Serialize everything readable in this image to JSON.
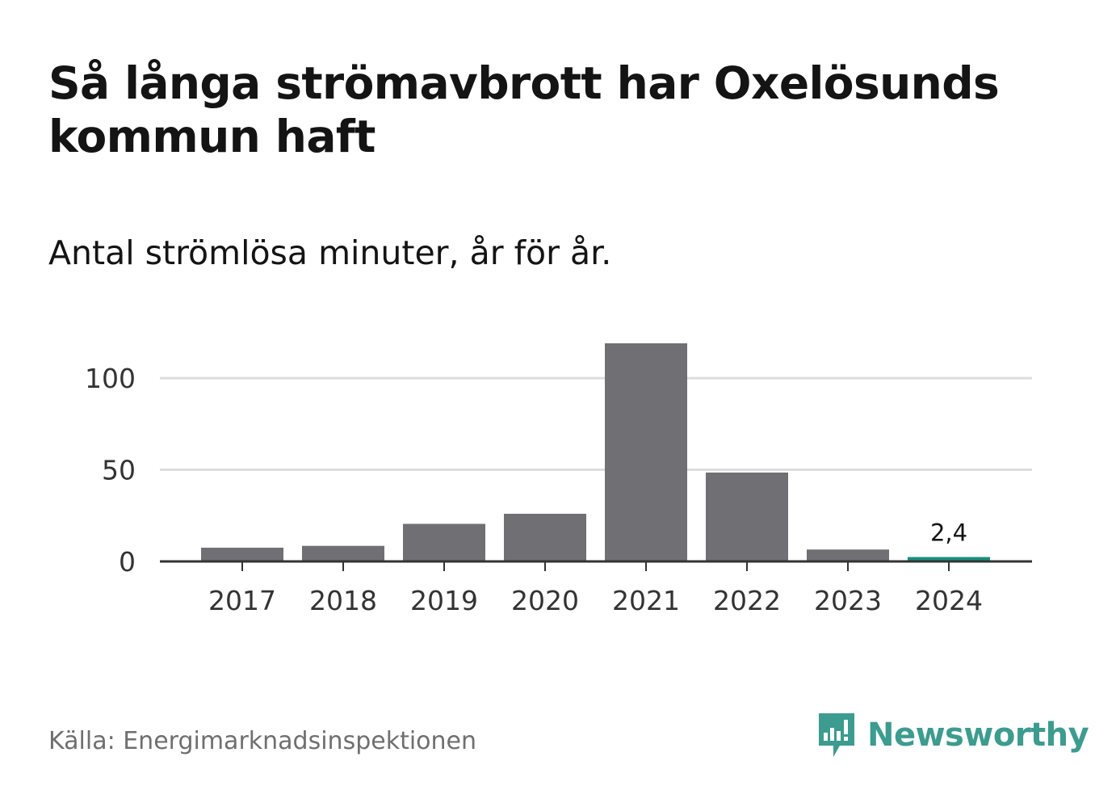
{
  "title": "Så långa strömavbrott har Oxelösunds kommun haft",
  "subtitle": "Antal strömlösa minuter, år för år.",
  "source": "Källa: Energimarknadsinspektionen",
  "brand": "Newsworthy",
  "colors": {
    "bar": "#706f74",
    "highlight": "#18907f",
    "grid": "#dddddd",
    "axis": "#333333",
    "brand": "#3b9c8f"
  },
  "chart_data": {
    "type": "bar",
    "title": "Så långa strömavbrott har Oxelösunds kommun haft",
    "subtitle": "Antal strömlösa minuter, år för år.",
    "xlabel": "",
    "ylabel": "",
    "categories": [
      "2017",
      "2018",
      "2019",
      "2020",
      "2021",
      "2022",
      "2023",
      "2024"
    ],
    "values": [
      7.5,
      8.5,
      20.5,
      26,
      119,
      48.5,
      6.5,
      2.4
    ],
    "highlight_index": 7,
    "annotations": [
      {
        "index": 7,
        "text": "2,4"
      }
    ],
    "ylim": [
      0,
      119
    ],
    "yticks": [
      0,
      50,
      100
    ],
    "grid": true,
    "legend": "none"
  }
}
